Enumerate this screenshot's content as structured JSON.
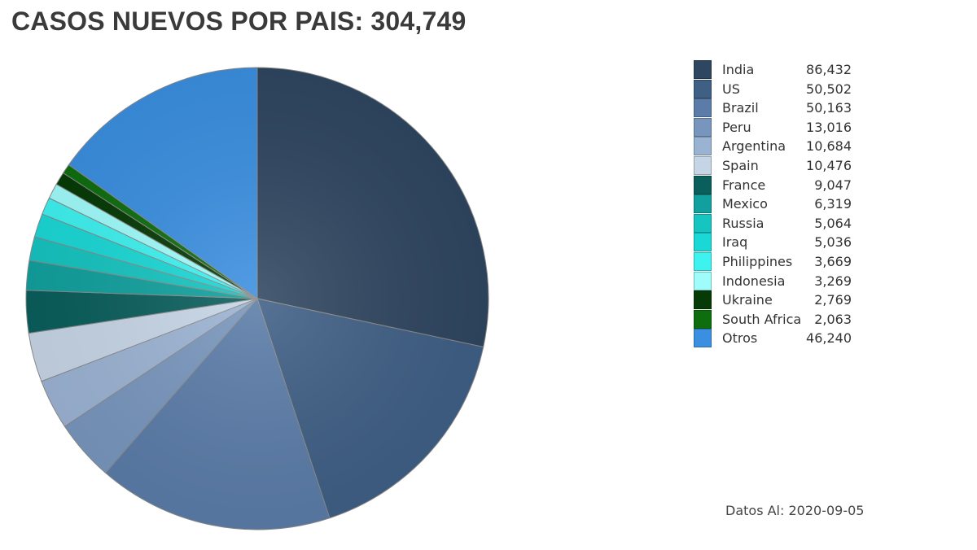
{
  "title": "CASOS NUEVOS POR PAIS: 304,749",
  "footer": {
    "label": "Datos Al:",
    "date": "2020-09-05"
  },
  "chart_data": {
    "type": "pie",
    "title": "CASOS NUEVOS POR PAIS: 304,749",
    "legend_position": "right",
    "slices": [
      {
        "label": "India",
        "value": 86432,
        "value_text": "86,432",
        "color": "#2f4660"
      },
      {
        "label": "US",
        "value": 50502,
        "value_text": "50,502",
        "color": "#3f5f85"
      },
      {
        "label": "Brazil",
        "value": 50163,
        "value_text": "50,163",
        "color": "#5b7ca8"
      },
      {
        "label": "Peru",
        "value": 13016,
        "value_text": "13,016",
        "color": "#7896bd"
      },
      {
        "label": "Argentina",
        "value": 10684,
        "value_text": "10,684",
        "color": "#9bb3d3"
      },
      {
        "label": "Spain",
        "value": 10476,
        "value_text": "10,476",
        "color": "#c6d5e6"
      },
      {
        "label": "France",
        "value": 9047,
        "value_text": "9,047",
        "color": "#0a5e5c"
      },
      {
        "label": "Mexico",
        "value": 6319,
        "value_text": "6,319",
        "color": "#11a09d"
      },
      {
        "label": "Russia",
        "value": 5064,
        "value_text": "5,064",
        "color": "#16c4c0"
      },
      {
        "label": "Iraq",
        "value": 5036,
        "value_text": "5,036",
        "color": "#1ad8d6"
      },
      {
        "label": "Philippines",
        "value": 3669,
        "value_text": "3,669",
        "color": "#3ef2f0"
      },
      {
        "label": "Indonesia",
        "value": 3269,
        "value_text": "3,269",
        "color": "#9ffcfb"
      },
      {
        "label": "Ukraine",
        "value": 2769,
        "value_text": "2,769",
        "color": "#063a06"
      },
      {
        "label": "South Africa",
        "value": 2063,
        "value_text": "2,063",
        "color": "#0e6e0e"
      },
      {
        "label": "Otros",
        "value": 46240,
        "value_text": "46,240",
        "color": "#3b8fe0"
      }
    ]
  }
}
